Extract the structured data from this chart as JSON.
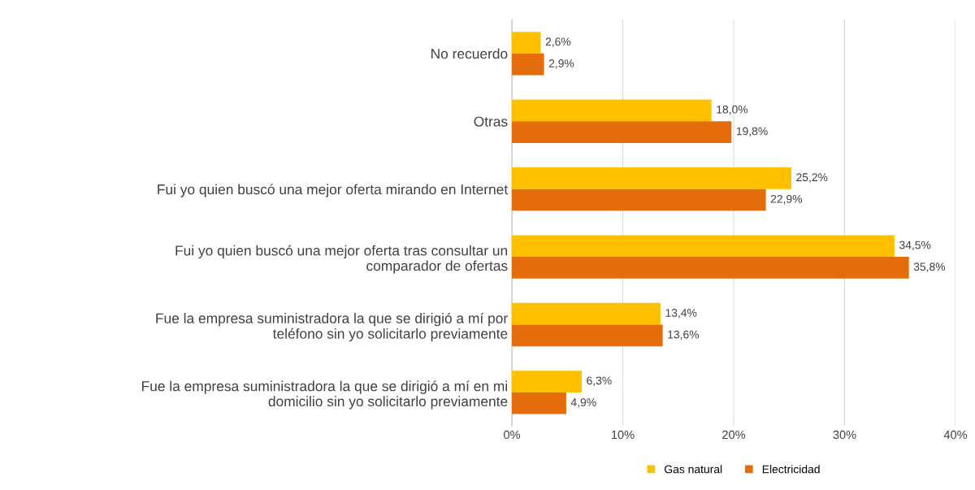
{
  "chart_data": {
    "type": "bar",
    "orientation": "horizontal",
    "categories": [
      "No recuerdo",
      "Otras",
      "Fui yo quien buscó una mejor oferta mirando en Internet",
      "Fui yo quien buscó una mejor oferta tras consultar un\ncomparador de ofertas",
      "Fue la empresa suministradora la que se dirigió a mí por\nteléfono sin yo solicitarlo previamente",
      "Fue la empresa suministradora la que se dirigió a mí en mi\ndomicilio sin yo solicitarlo previamente"
    ],
    "series": [
      {
        "name": "Gas natural",
        "color": "#ffc000",
        "values": [
          2.6,
          18.0,
          25.2,
          34.5,
          13.4,
          6.3
        ],
        "value_labels": [
          "2,6%",
          "18,0%",
          "25,2%",
          "34,5%",
          "13,4%",
          "6,3%"
        ]
      },
      {
        "name": "Electricidad",
        "color": "#e46c0a",
        "values": [
          2.9,
          19.8,
          22.9,
          35.8,
          13.6,
          4.9
        ],
        "value_labels": [
          "2,9%",
          "19,8%",
          "22,9%",
          "35,8%",
          "13,6%",
          "4,9%"
        ]
      }
    ],
    "xlim": [
      0,
      40
    ],
    "xticks": [
      {
        "value": 0,
        "label": "0%"
      },
      {
        "value": 10,
        "label": "10%"
      },
      {
        "value": 20,
        "label": "20%"
      },
      {
        "value": 30,
        "label": "30%"
      },
      {
        "value": 40,
        "label": "40%"
      }
    ],
    "grid": "x",
    "legend": "bottom"
  }
}
